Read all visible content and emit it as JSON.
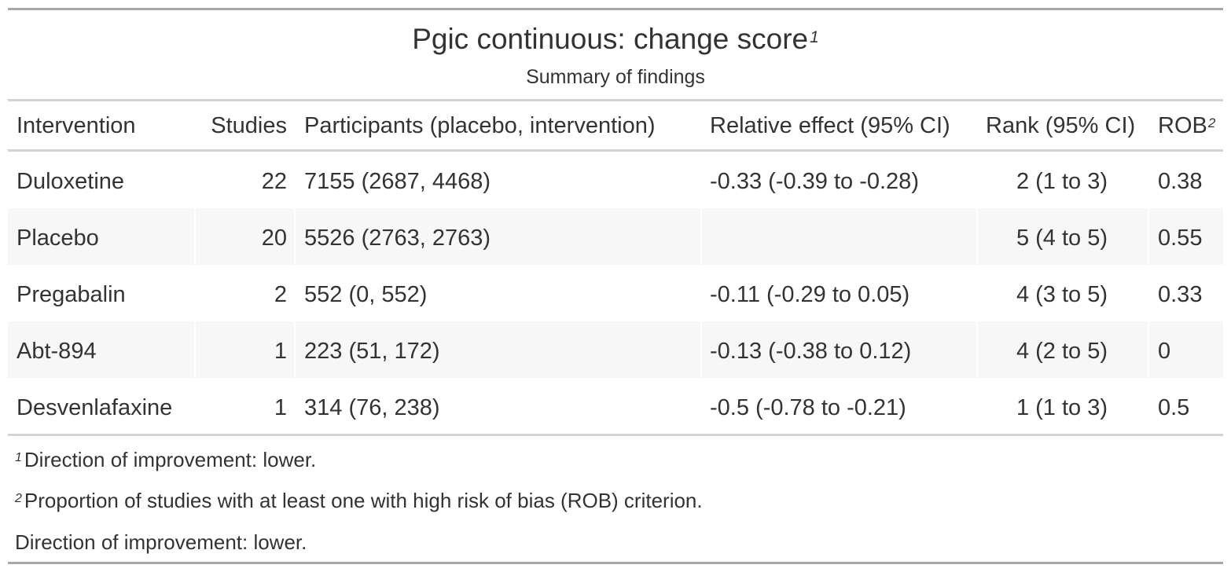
{
  "title": "Pgic continuous: change score",
  "title_note_marker": "1",
  "subtitle": "Summary of findings",
  "columns": {
    "intervention": "Intervention",
    "studies": "Studies",
    "participants": "Participants (placebo, intervention)",
    "relative_effect": "Relative effect (95% CI)",
    "rank": "Rank (95% CI)",
    "rob": "ROB",
    "rob_note_marker": "2"
  },
  "rows": [
    {
      "intervention": "Duloxetine",
      "studies": "22",
      "participants": "7155 (2687, 4468)",
      "relative_effect": "-0.33 (-0.39 to -0.28)",
      "rank": "2 (1 to 3)",
      "rob": "0.38"
    },
    {
      "intervention": "Placebo",
      "studies": "20",
      "participants": "5526 (2763, 2763)",
      "relative_effect": "",
      "rank": "5 (4 to 5)",
      "rob": "0.55"
    },
    {
      "intervention": "Pregabalin",
      "studies": "2",
      "participants": "552 (0, 552)",
      "relative_effect": "-0.11 (-0.29 to 0.05)",
      "rank": "4 (3 to 5)",
      "rob": "0.33"
    },
    {
      "intervention": "Abt-894",
      "studies": "1",
      "participants": "223 (51, 172)",
      "relative_effect": "-0.13 (-0.38 to 0.12)",
      "rank": "4 (2 to 5)",
      "rob": "0"
    },
    {
      "intervention": "Desvenlafaxine",
      "studies": "1",
      "participants": "314 (76, 238)",
      "relative_effect": "-0.5 (-0.78 to -0.21)",
      "rank": "1 (1 to 3)",
      "rob": "0.5"
    }
  ],
  "footnotes": [
    {
      "marker": "1",
      "text": "Direction of improvement: lower."
    },
    {
      "marker": "2",
      "text": "Proportion of studies with at least one with high risk of bias (ROB) criterion."
    }
  ],
  "source_note": "Direction of improvement: lower.",
  "colors": {
    "text": "#333333",
    "outer_rule": "#a8a8a8",
    "inner_rule": "#d3d3d3",
    "stripe": "#f7f7f7"
  }
}
